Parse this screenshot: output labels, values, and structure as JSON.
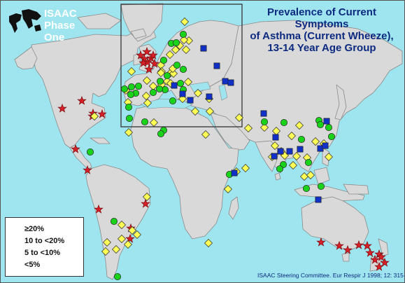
{
  "logo": {
    "line1": "ISAAC Phase",
    "line2": "One"
  },
  "title": {
    "line1": "Prevalence of Current Symptoms",
    "line2": "of Asthma (Current Wheeze),",
    "line3": "13-14 Year Age Group"
  },
  "legend": {
    "items": [
      {
        "symbol": "star",
        "label": "≥20%"
      },
      {
        "symbol": "diamond",
        "label": "10 to <20%"
      },
      {
        "symbol": "circle",
        "label": "5 to <10%"
      },
      {
        "symbol": "square",
        "label": "<5%"
      }
    ]
  },
  "citation": "ISAAC Steering Committee. Eur Respir J 1998; 12: 315-35.",
  "colors": {
    "ocean": "#9fe5ef",
    "land": "#d9d9d9",
    "star": "#d61f26",
    "diamond": "#ffff55",
    "circle": "#1bd21b",
    "square": "#1030c8",
    "title": "#0c2a80"
  },
  "chart_data": {
    "type": "map",
    "categories": [
      "≥20%",
      "10 to <20%",
      "5 to <10%",
      "<5%"
    ],
    "groups": [
      {
        "symbol": "star",
        "color": "#d61f26",
        "label": "≥20%",
        "points": [
          [
            88,
            154
          ],
          [
            116,
            143
          ],
          [
            131,
            165
          ],
          [
            145,
            162
          ],
          [
            132,
            161
          ],
          [
            107,
            212
          ],
          [
            124,
            242
          ],
          [
            140,
            298
          ],
          [
            212,
            98
          ],
          [
            200,
            78
          ],
          [
            205,
            83
          ],
          [
            209,
            73
          ],
          [
            210,
            88
          ],
          [
            215,
            82
          ],
          [
            220,
            90
          ],
          [
            218,
            78
          ],
          [
            204,
            89
          ],
          [
            186,
            325
          ],
          [
            185,
            340
          ],
          [
            207,
            290
          ],
          [
            458,
            345
          ],
          [
            484,
            350
          ],
          [
            496,
            356
          ],
          [
            512,
            349
          ],
          [
            524,
            350
          ],
          [
            528,
            360
          ],
          [
            535,
            370
          ],
          [
            541,
            362
          ],
          [
            549,
            374
          ],
          [
            544,
            366
          ],
          [
            541,
            380
          ]
        ]
      },
      {
        "symbol": "diamond",
        "color": "#ffff55",
        "label": "10 to <20%",
        "points": [
          [
            263,
            30
          ],
          [
            269,
            57
          ],
          [
            265,
            70
          ],
          [
            242,
            77
          ],
          [
            229,
            92
          ],
          [
            230,
            101
          ],
          [
            243,
            103
          ],
          [
            238,
            115
          ],
          [
            229,
            103
          ],
          [
            209,
            114
          ],
          [
            208,
            136
          ],
          [
            210,
            146
          ],
          [
            183,
            188
          ],
          [
            243,
            118
          ],
          [
            268,
            116
          ],
          [
            282,
            132
          ],
          [
            278,
            158
          ],
          [
            260,
            140
          ],
          [
            298,
            140
          ],
          [
            247,
            104
          ],
          [
            218,
            122
          ],
          [
            262,
            56
          ],
          [
            256,
            64
          ],
          [
            250,
            70
          ],
          [
            187,
            101
          ],
          [
            134,
            165
          ],
          [
            230,
            120
          ],
          [
            246,
            97
          ],
          [
            179,
            128
          ],
          [
            182,
            145
          ],
          [
            219,
            174
          ],
          [
            293,
            191
          ],
          [
            299,
            158
          ],
          [
            341,
            167
          ],
          [
            354,
            182
          ],
          [
            337,
            244
          ],
          [
            350,
            239
          ],
          [
            377,
            181
          ],
          [
            394,
            186
          ],
          [
            392,
            207
          ],
          [
            418,
            235
          ],
          [
            438,
            224
          ],
          [
            434,
            251
          ],
          [
            443,
            249
          ],
          [
            427,
            178
          ],
          [
            450,
            201
          ],
          [
            462,
            204
          ],
          [
            469,
            223
          ],
          [
            401,
            215
          ],
          [
            423,
            222
          ],
          [
            416,
            193
          ],
          [
            209,
            280
          ],
          [
            152,
            345
          ],
          [
            150,
            358
          ],
          [
            165,
            355
          ],
          [
            173,
            340
          ],
          [
            182,
            348
          ],
          [
            173,
            320
          ],
          [
            188,
            328
          ],
          [
            195,
            334
          ],
          [
            297,
            346
          ],
          [
            406,
            221
          ],
          [
            388,
            223
          ],
          [
            325,
            269
          ]
        ]
      },
      {
        "symbol": "circle",
        "color": "#1bd21b",
        "label": "5 to <10%",
        "points": [
          [
            244,
            61
          ],
          [
            251,
            60
          ],
          [
            261,
            48
          ],
          [
            233,
            85
          ],
          [
            252,
            92
          ],
          [
            261,
            98
          ],
          [
            238,
            107
          ],
          [
            228,
            115
          ],
          [
            235,
            127
          ],
          [
            197,
            122
          ],
          [
            193,
            132
          ],
          [
            177,
            126
          ],
          [
            186,
            134
          ],
          [
            183,
            152
          ],
          [
            187,
            123
          ],
          [
            227,
            126
          ],
          [
            218,
            131
          ],
          [
            257,
            118
          ],
          [
            233,
            185
          ],
          [
            229,
            190
          ],
          [
            405,
            174
          ],
          [
            377,
            173
          ],
          [
            455,
            171
          ],
          [
            457,
            177
          ],
          [
            469,
            181
          ],
          [
            473,
            194
          ],
          [
            430,
            198
          ],
          [
            440,
            231
          ],
          [
            437,
            268
          ],
          [
            458,
            265
          ],
          [
            404,
            234
          ],
          [
            399,
            240
          ],
          [
            327,
            248
          ],
          [
            128,
            216
          ],
          [
            162,
            315
          ],
          [
            167,
            394
          ],
          [
            184,
            168
          ],
          [
            206,
            173
          ],
          [
            261,
            127
          ],
          [
            246,
            143
          ]
        ]
      },
      {
        "symbol": "square",
        "color": "#1030c8",
        "label": "<5%",
        "points": [
          [
            290,
            68
          ],
          [
            321,
            115
          ],
          [
            329,
            117
          ],
          [
            309,
            93
          ],
          [
            260,
            133
          ],
          [
            248,
            121
          ],
          [
            376,
            161
          ],
          [
            466,
            172
          ],
          [
            393,
            195
          ],
          [
            400,
            215
          ],
          [
            413,
            215
          ],
          [
            428,
            212
          ],
          [
            457,
            211
          ],
          [
            464,
            207
          ],
          [
            391,
            222
          ],
          [
            334,
            246
          ],
          [
            454,
            284
          ],
          [
            298,
            137
          ],
          [
            271,
            142
          ]
        ]
      }
    ]
  }
}
